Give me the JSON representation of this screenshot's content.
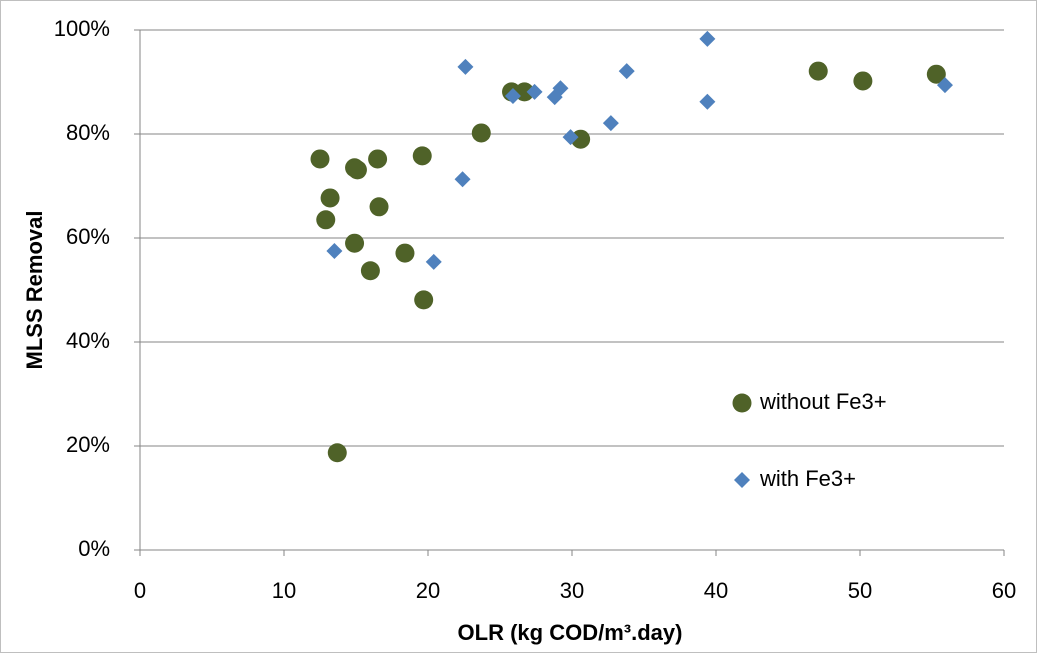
{
  "chart_data": {
    "type": "scatter",
    "x_label": "OLR (kg COD/m³.day)",
    "y_label": "MLSS Removal",
    "xlim": [
      0,
      60
    ],
    "xticks": [
      0,
      10,
      20,
      30,
      40,
      50,
      60
    ],
    "ylim": [
      0,
      100
    ],
    "yticks": [
      {
        "value": 0,
        "label": "0%"
      },
      {
        "value": 20,
        "label": "20%"
      },
      {
        "value": 40,
        "label": "40%"
      },
      {
        "value": 60,
        "label": "60%"
      },
      {
        "value": 80,
        "label": "80%"
      },
      {
        "value": 100,
        "label": "100%"
      }
    ],
    "grid": true,
    "legend": "right",
    "series": [
      {
        "name": "without Fe3+",
        "color": "#4f6228",
        "marker": "circle",
        "x": [
          12.5,
          13.2,
          12.9,
          14.9,
          15.1,
          16.5,
          16.6,
          14.9,
          16.0,
          18.4,
          19.6,
          19.7,
          13.7,
          23.7,
          25.8,
          26.7,
          30.6,
          47.1,
          50.2,
          55.3
        ],
        "values": [
          75.2,
          67.7,
          63.5,
          73.5,
          73.1,
          75.2,
          66.0,
          59.0,
          53.7,
          57.1,
          75.8,
          48.1,
          18.7,
          80.2,
          88.1,
          88.1,
          79.0,
          92.1,
          90.2,
          91.5
        ]
      },
      {
        "name": "with Fe3+",
        "color": "#4f81bd",
        "marker": "diamond",
        "x": [
          13.5,
          20.4,
          22.4,
          22.6,
          25.9,
          27.4,
          28.8,
          29.2,
          29.9,
          32.7,
          33.8,
          39.4,
          39.4,
          55.9
        ],
        "values": [
          57.5,
          55.4,
          71.3,
          92.9,
          87.3,
          88.1,
          87.1,
          88.8,
          79.4,
          82.1,
          92.1,
          98.3,
          86.2,
          89.4
        ]
      }
    ]
  }
}
